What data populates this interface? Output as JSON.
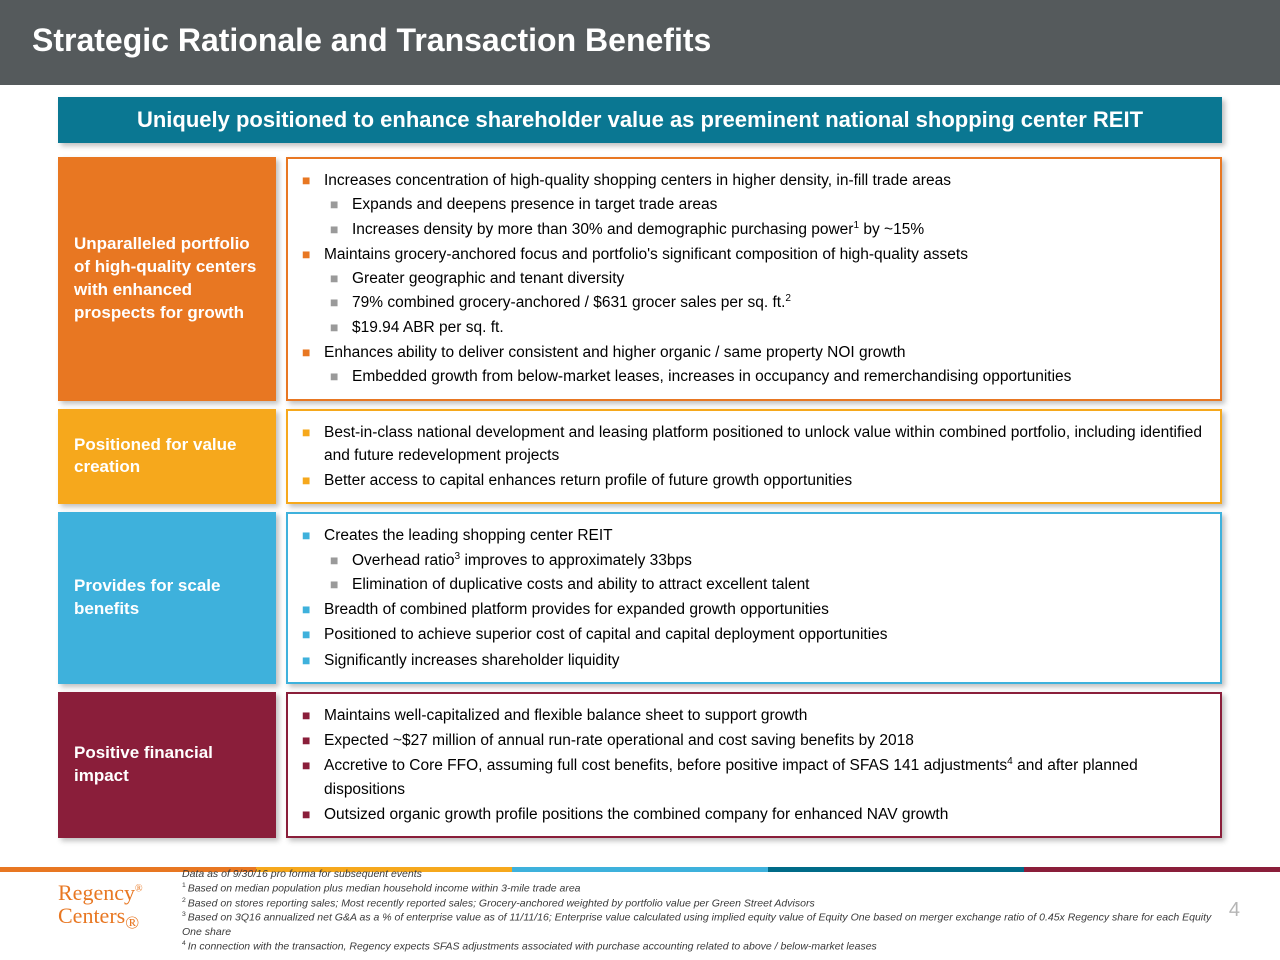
{
  "title": "Strategic Rationale and Transaction Benefits",
  "banner": "Uniquely positioned to enhance shareholder value as preeminent national shopping center REIT",
  "sections": {
    "orange": {
      "label": "Unparalleled portfolio of high-quality centers with enhanced prospects for growth",
      "b1": "Increases concentration of high-quality shopping centers in higher density, in-fill trade areas",
      "b1s1": "Expands and deepens presence in target trade areas",
      "b1s2a": "Increases density by more than 30% and demographic purchasing power",
      "b1s2b": " by ~15%",
      "b2": "Maintains grocery-anchored focus and portfolio's significant composition of high-quality assets",
      "b2s1": "Greater geographic and tenant diversity",
      "b2s2a": "79% combined grocery-anchored / $631 grocer sales per sq. ft.",
      "b2s3": "$19.94 ABR per sq. ft.",
      "b3": "Enhances ability to deliver consistent and higher organic / same property NOI growth",
      "b3s1": "Embedded growth from below-market leases, increases in occupancy and remerchandising opportunities"
    },
    "yellow": {
      "label": "Positioned for value creation",
      "b1": "Best-in-class national development and leasing platform positioned to unlock value within combined portfolio, including identified and future redevelopment projects",
      "b2": "Better access to capital enhances return profile of future growth opportunities"
    },
    "blue": {
      "label": "Provides for scale benefits",
      "b1": "Creates the leading shopping center REIT",
      "b1s1a": "Overhead ratio",
      "b1s1b": " improves to approximately 33bps",
      "b1s2": "Elimination of duplicative costs and ability to attract excellent talent",
      "b2": "Breadth of combined platform provides for expanded growth opportunities",
      "b3": "Positioned to achieve superior cost of capital and capital deployment opportunities",
      "b4": "Significantly increases shareholder liquidity"
    },
    "maroon": {
      "label": "Positive financial impact",
      "b1": "Maintains well-capitalized and flexible balance sheet to support growth",
      "b2": "Expected ~$27 million of annual run-rate operational and cost saving benefits by 2018",
      "b3a": "Accretive to Core FFO, assuming full cost benefits, before positive impact of SFAS 141 adjustments",
      "b3b": " and after planned dispositions",
      "b4": "Outsized organic growth profile positions the combined company for enhanced NAV growth"
    }
  },
  "colorStrip": [
    "#e87722",
    "#f6a81c",
    "#3eb1dc",
    "#006b88",
    "#8a1e3a"
  ],
  "logo": {
    "line1": "Regency",
    "line2": "Centers"
  },
  "footnotes": {
    "intro": "Data as of 9/30/16 pro forma for subsequent events",
    "f1": "Based on median population plus median household income within 3-mile trade area",
    "f2": "Based on stores reporting sales; Most recently reported sales; Grocery-anchored weighted by portfolio value per Green Street Advisors",
    "f3": "Based on 3Q16 annualized net G&A as a % of enterprise value as of 11/11/16; Enterprise value calculated using implied equity value of Equity One based on merger exchange ratio of 0.45x Regency share for each Equity One share",
    "f4": "In connection with the transaction, Regency expects SFAS adjustments associated with purchase accounting related to above / below-market leases"
  },
  "pageNumber": "4"
}
